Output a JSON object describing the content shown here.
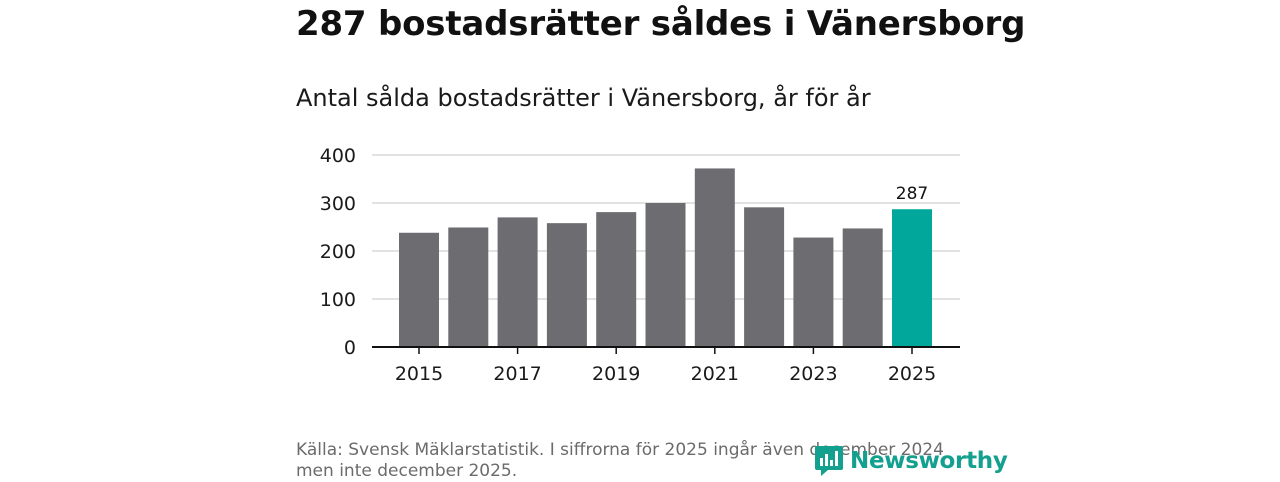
{
  "title": "287 bostadsrätter såldes i Vänersborg",
  "subtitle": "Antal sålda bostadsrätter i Vänersborg, år för år",
  "source": "Källa: Svensk Mäklarstatistik. I siffrorna för 2025 ingår även december 2024 men inte december 2025.",
  "brand": "Newsworthy",
  "colors": {
    "bar": "#6d6c71",
    "highlight": "#00a79a",
    "grid": "#d9d9d9",
    "axis": "#111111"
  },
  "chart_data": {
    "type": "bar",
    "title": "Antal sålda bostadsrätter i Vänersborg, år för år",
    "xlabel": "",
    "ylabel": "",
    "categories": [
      "2015",
      "2016",
      "2017",
      "2018",
      "2019",
      "2020",
      "2021",
      "2022",
      "2023",
      "2024",
      "2025"
    ],
    "values": [
      238,
      249,
      270,
      258,
      281,
      300,
      372,
      291,
      228,
      247,
      287
    ],
    "ylim": [
      0,
      400
    ],
    "yticks": [
      0,
      100,
      200,
      300,
      400
    ],
    "xtick_labels": [
      "2015",
      "2017",
      "2019",
      "2021",
      "2023",
      "2025"
    ],
    "highlight_category": "2025",
    "highlight_label": "287",
    "grid": true
  }
}
